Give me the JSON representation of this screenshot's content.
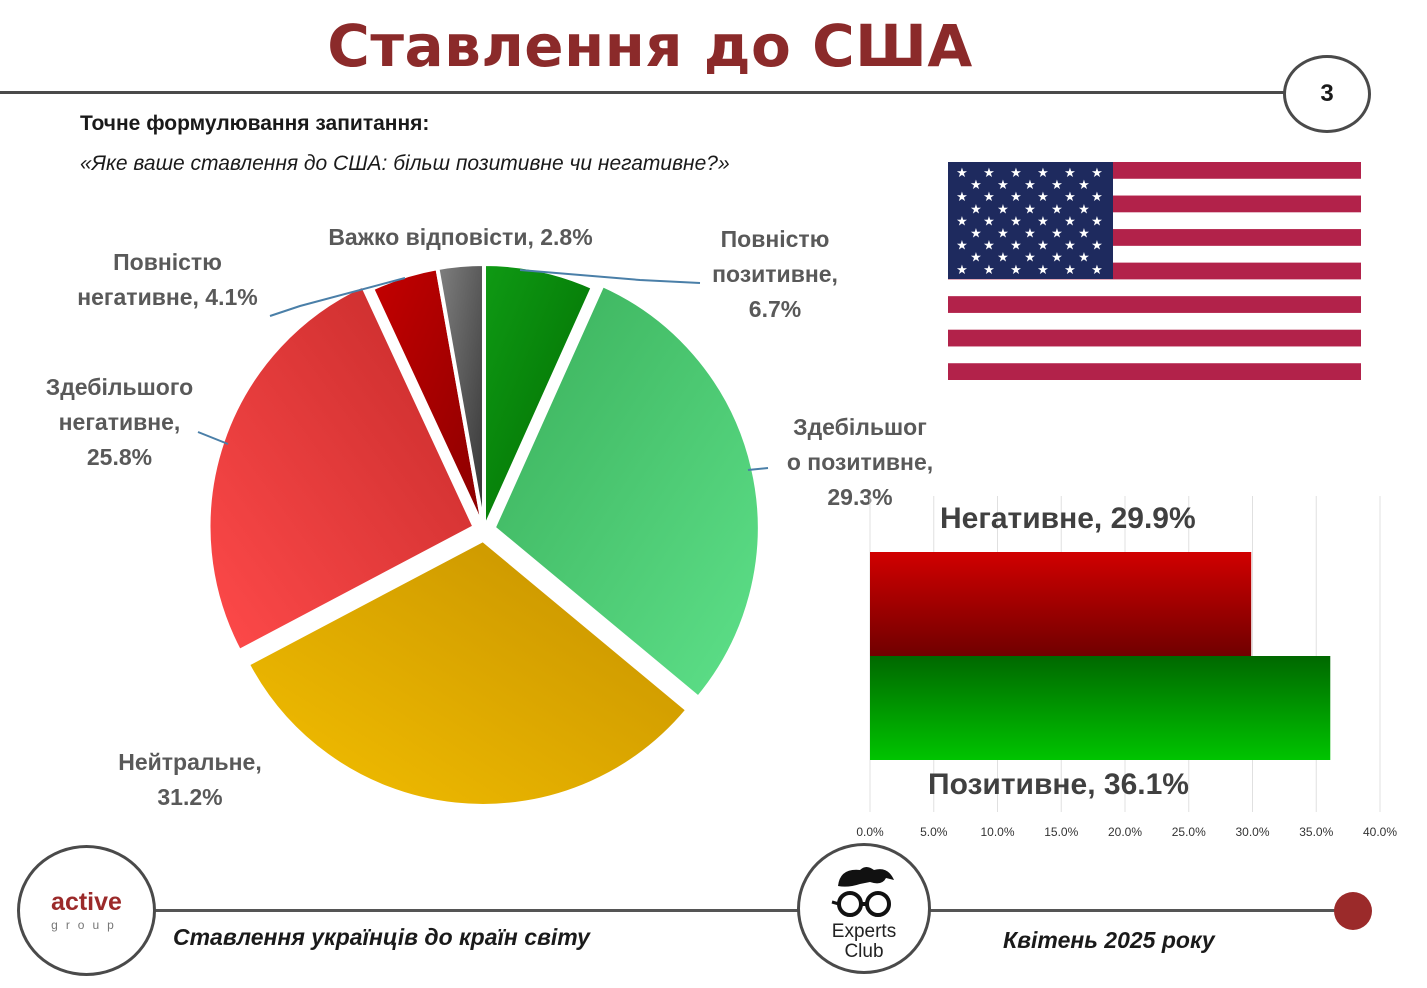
{
  "title": "Ставлення до США",
  "page_number": "3",
  "question": {
    "label": "Точне формулювання запитання:",
    "text": "«Яке ваше ставлення до США: більш позитивне чи негативне?»"
  },
  "pie_labels": {
    "very_positive": [
      "Повністю",
      "позитивне,",
      "6.7%"
    ],
    "mostly_positive": [
      "Здебільшог",
      "о позитивне,",
      "29.3%"
    ],
    "neutral": [
      "Нейтральне,",
      "31.2%"
    ],
    "mostly_negative": [
      "Здебільшого",
      "негативне,",
      "25.8%"
    ],
    "very_negative": [
      "Повністю",
      "негативне, 4.1%"
    ],
    "hard_to_say": [
      "Важко відповісти, 2.8%"
    ]
  },
  "bar_labels": {
    "negative": "Негативне, 29.9%",
    "positive": "Позитивне, 36.1%"
  },
  "footer": {
    "left_text": "Ставлення українців до країн світу",
    "right_text": "Квітень 2025 року",
    "logo_left_word": "active",
    "logo_left_sub": "group",
    "logo_center_line1": "Experts",
    "logo_center_line2": "Club"
  },
  "flag_icon": "us-flag-icon",
  "chart_data": [
    {
      "type": "pie",
      "categories": [
        "Повністю позитивне",
        "Здебільшого позитивне",
        "Нейтральне",
        "Здебільшого негативне",
        "Повністю негативне",
        "Важко відповісти"
      ],
      "values": [
        6.7,
        29.3,
        31.2,
        25.8,
        4.1,
        2.8
      ],
      "colors": [
        "#0a7a0a",
        "#43c46a",
        "#d9a300",
        "#e03a3a",
        "#b00000",
        "#555555"
      ]
    },
    {
      "type": "bar",
      "orientation": "horizontal",
      "categories": [
        "Негативне",
        "Позитивне"
      ],
      "values": [
        29.9,
        36.1
      ],
      "xlim": [
        0,
        40
      ],
      "ticks": [
        "0.0%",
        "5.0%",
        "10.0%",
        "15.0%",
        "20.0%",
        "25.0%",
        "30.0%",
        "35.0%",
        "40.0%"
      ],
      "colors": [
        "#b00000",
        "#0a9a0a"
      ],
      "grid": true
    }
  ]
}
